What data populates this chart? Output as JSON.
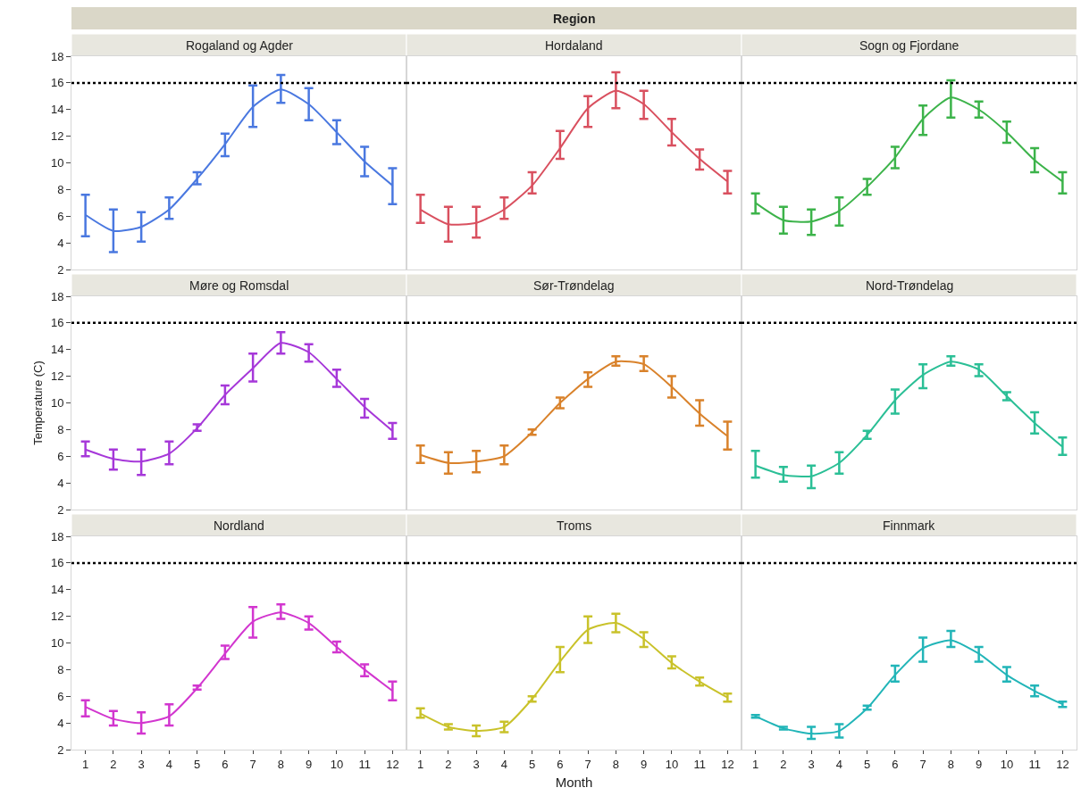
{
  "chart_data": [
    {
      "type": "line",
      "title": "Rogaland og Agder",
      "annotations": [
        "Region"
      ],
      "x": [
        1,
        2,
        3,
        4,
        5,
        6,
        7,
        8,
        9,
        10,
        11,
        12
      ],
      "xlim": [
        0.5,
        12.5
      ],
      "xticks": [
        1,
        2,
        3,
        4,
        5,
        6,
        7,
        8,
        9,
        10,
        11,
        12
      ],
      "ylim": [
        2,
        18
      ],
      "yticks": [
        2,
        4,
        6,
        8,
        10,
        12,
        14,
        16,
        18
      ],
      "grid": false,
      "tick_labels": "y",
      "ref_lines": [
        {
          "axis": "y",
          "value": 16,
          "color": "#000000",
          "line_style": "dotted"
        }
      ],
      "series": [
        {
          "color": "#4a78e0",
          "values": [
            6.1,
            4.9,
            5.2,
            6.5,
            8.8,
            11.4,
            14.2,
            15.5,
            14.4,
            12.3,
            10.1,
            8.3
          ],
          "errors": [
            [
              4.5,
              7.6
            ],
            [
              3.3,
              6.5
            ],
            [
              4.1,
              6.3
            ],
            [
              5.8,
              7.4
            ],
            [
              8.4,
              9.3
            ],
            [
              10.5,
              12.2
            ],
            [
              12.7,
              15.8
            ],
            [
              14.5,
              16.6
            ],
            [
              13.2,
              15.6
            ],
            [
              11.4,
              13.2
            ],
            [
              9.0,
              11.2
            ],
            [
              6.9,
              9.6
            ]
          ]
        }
      ]
    },
    {
      "type": "line",
      "title": "Hordaland",
      "x": [
        1,
        2,
        3,
        4,
        5,
        6,
        7,
        8,
        9,
        10,
        11,
        12
      ],
      "xlim": [
        0.5,
        12.5
      ],
      "xticks": [
        1,
        2,
        3,
        4,
        5,
        6,
        7,
        8,
        9,
        10,
        11,
        12
      ],
      "ylim": [
        2,
        18
      ],
      "yticks": [
        2,
        4,
        6,
        8,
        10,
        12,
        14,
        16,
        18
      ],
      "grid": false,
      "tick_labels": false,
      "ref_lines": [
        {
          "axis": "y",
          "value": 16,
          "color": "#000000",
          "line_style": "dotted"
        }
      ],
      "series": [
        {
          "color": "#d9505f",
          "values": [
            6.5,
            5.4,
            5.5,
            6.5,
            8.3,
            11.1,
            14.1,
            15.4,
            14.4,
            12.3,
            10.3,
            8.6
          ],
          "errors": [
            [
              5.5,
              7.6
            ],
            [
              4.1,
              6.7
            ],
            [
              4.4,
              6.7
            ],
            [
              5.8,
              7.4
            ],
            [
              7.7,
              9.3
            ],
            [
              10.3,
              12.4
            ],
            [
              12.7,
              15.0
            ],
            [
              14.1,
              16.8
            ],
            [
              13.3,
              15.4
            ],
            [
              11.3,
              13.3
            ],
            [
              9.5,
              11.0
            ],
            [
              7.7,
              9.4
            ]
          ]
        }
      ]
    },
    {
      "type": "line",
      "title": "Sogn og Fjordane",
      "x": [
        1,
        2,
        3,
        4,
        5,
        6,
        7,
        8,
        9,
        10,
        11,
        12
      ],
      "xlim": [
        0.5,
        12.5
      ],
      "xticks": [
        1,
        2,
        3,
        4,
        5,
        6,
        7,
        8,
        9,
        10,
        11,
        12
      ],
      "ylim": [
        2,
        18
      ],
      "yticks": [
        2,
        4,
        6,
        8,
        10,
        12,
        14,
        16,
        18
      ],
      "grid": false,
      "tick_labels": false,
      "ref_lines": [
        {
          "axis": "y",
          "value": 16,
          "color": "#000000",
          "line_style": "dotted"
        }
      ],
      "series": [
        {
          "color": "#3cb34a",
          "values": [
            7.0,
            5.7,
            5.6,
            6.4,
            8.2,
            10.4,
            13.3,
            14.9,
            14.0,
            12.3,
            10.2,
            8.6
          ],
          "errors": [
            [
              6.2,
              7.7
            ],
            [
              4.7,
              6.7
            ],
            [
              4.6,
              6.5
            ],
            [
              5.3,
              7.4
            ],
            [
              7.6,
              8.8
            ],
            [
              9.6,
              11.2
            ],
            [
              12.1,
              14.3
            ],
            [
              13.4,
              16.2
            ],
            [
              13.4,
              14.6
            ],
            [
              11.5,
              13.1
            ],
            [
              9.3,
              11.1
            ],
            [
              7.7,
              9.3
            ]
          ]
        }
      ]
    },
    {
      "type": "line",
      "title": "Møre og Romsdal",
      "ylabel": "Temperature (C)",
      "x": [
        1,
        2,
        3,
        4,
        5,
        6,
        7,
        8,
        9,
        10,
        11,
        12
      ],
      "xlim": [
        0.5,
        12.5
      ],
      "xticks": [
        1,
        2,
        3,
        4,
        5,
        6,
        7,
        8,
        9,
        10,
        11,
        12
      ],
      "ylim": [
        2,
        18
      ],
      "yticks": [
        2,
        4,
        6,
        8,
        10,
        12,
        14,
        16,
        18
      ],
      "grid": false,
      "tick_labels": "y",
      "ref_lines": [
        {
          "axis": "y",
          "value": 16,
          "color": "#000000",
          "line_style": "dotted"
        }
      ],
      "series": [
        {
          "color": "#a638d9",
          "values": [
            6.5,
            5.8,
            5.6,
            6.2,
            8.1,
            10.6,
            12.6,
            14.5,
            13.8,
            11.8,
            9.7,
            7.9
          ],
          "errors": [
            [
              6.0,
              7.1
            ],
            [
              5.0,
              6.5
            ],
            [
              4.6,
              6.5
            ],
            [
              5.4,
              7.1
            ],
            [
              7.9,
              8.4
            ],
            [
              9.9,
              11.3
            ],
            [
              11.6,
              13.7
            ],
            [
              13.7,
              15.3
            ],
            [
              13.1,
              14.4
            ],
            [
              11.2,
              12.5
            ],
            [
              8.9,
              10.3
            ],
            [
              7.3,
              8.5
            ]
          ]
        }
      ]
    },
    {
      "type": "line",
      "title": "Sør-Trøndelag",
      "x": [
        1,
        2,
        3,
        4,
        5,
        6,
        7,
        8,
        9,
        10,
        11,
        12
      ],
      "xlim": [
        0.5,
        12.5
      ],
      "xticks": [
        1,
        2,
        3,
        4,
        5,
        6,
        7,
        8,
        9,
        10,
        11,
        12
      ],
      "ylim": [
        2,
        18
      ],
      "yticks": [
        2,
        4,
        6,
        8,
        10,
        12,
        14,
        16,
        18
      ],
      "grid": false,
      "tick_labels": false,
      "ref_lines": [
        {
          "axis": "y",
          "value": 16,
          "color": "#000000",
          "line_style": "dotted"
        }
      ],
      "series": [
        {
          "color": "#d9822b",
          "values": [
            6.1,
            5.5,
            5.6,
            6.0,
            7.8,
            10.0,
            11.8,
            13.1,
            12.9,
            11.2,
            9.2,
            7.5
          ],
          "errors": [
            [
              5.5,
              6.8
            ],
            [
              4.7,
              6.3
            ],
            [
              4.8,
              6.4
            ],
            [
              5.4,
              6.8
            ],
            [
              7.6,
              8.0
            ],
            [
              9.6,
              10.4
            ],
            [
              11.2,
              12.3
            ],
            [
              12.8,
              13.5
            ],
            [
              12.4,
              13.5
            ],
            [
              10.4,
              12.0
            ],
            [
              8.3,
              10.2
            ],
            [
              6.5,
              8.6
            ]
          ]
        }
      ]
    },
    {
      "type": "line",
      "title": "Nord-Trøndelag",
      "x": [
        1,
        2,
        3,
        4,
        5,
        6,
        7,
        8,
        9,
        10,
        11,
        12
      ],
      "xlim": [
        0.5,
        12.5
      ],
      "xticks": [
        1,
        2,
        3,
        4,
        5,
        6,
        7,
        8,
        9,
        10,
        11,
        12
      ],
      "ylim": [
        2,
        18
      ],
      "yticks": [
        2,
        4,
        6,
        8,
        10,
        12,
        14,
        16,
        18
      ],
      "grid": false,
      "tick_labels": false,
      "ref_lines": [
        {
          "axis": "y",
          "value": 16,
          "color": "#000000",
          "line_style": "dotted"
        }
      ],
      "series": [
        {
          "color": "#2bbf96",
          "values": [
            5.3,
            4.6,
            4.5,
            5.5,
            7.6,
            10.2,
            12.1,
            13.1,
            12.5,
            10.5,
            8.5,
            6.7
          ],
          "errors": [
            [
              4.4,
              6.4
            ],
            [
              4.1,
              5.2
            ],
            [
              3.6,
              5.3
            ],
            [
              4.7,
              6.3
            ],
            [
              7.3,
              7.9
            ],
            [
              9.2,
              11.0
            ],
            [
              11.1,
              12.9
            ],
            [
              12.8,
              13.5
            ],
            [
              12.0,
              12.9
            ],
            [
              10.2,
              10.8
            ],
            [
              7.7,
              9.3
            ],
            [
              6.1,
              7.4
            ]
          ]
        }
      ]
    },
    {
      "type": "line",
      "title": "Nordland",
      "x": [
        1,
        2,
        3,
        4,
        5,
        6,
        7,
        8,
        9,
        10,
        11,
        12
      ],
      "xlim": [
        0.5,
        12.5
      ],
      "xticks": [
        1,
        2,
        3,
        4,
        5,
        6,
        7,
        8,
        9,
        10,
        11,
        12
      ],
      "ylim": [
        2,
        18
      ],
      "yticks": [
        2,
        4,
        6,
        8,
        10,
        12,
        14,
        16,
        18
      ],
      "grid": false,
      "ref_lines": [
        {
          "axis": "y",
          "value": 16,
          "color": "#000000",
          "line_style": "dotted"
        }
      ],
      "series": [
        {
          "color": "#d236cf",
          "values": [
            5.2,
            4.3,
            4.0,
            4.5,
            6.6,
            9.2,
            11.6,
            12.3,
            11.5,
            9.7,
            8.0,
            6.4
          ],
          "errors": [
            [
              4.5,
              5.7
            ],
            [
              3.8,
              4.9
            ],
            [
              3.2,
              4.8
            ],
            [
              3.8,
              5.4
            ],
            [
              6.5,
              6.8
            ],
            [
              8.8,
              9.8
            ],
            [
              10.4,
              12.7
            ],
            [
              11.8,
              12.9
            ],
            [
              11.0,
              12.0
            ],
            [
              9.3,
              10.1
            ],
            [
              7.5,
              8.4
            ],
            [
              5.7,
              7.1
            ]
          ]
        }
      ]
    },
    {
      "type": "line",
      "title": "Troms",
      "xlabel": "Month",
      "x": [
        1,
        2,
        3,
        4,
        5,
        6,
        7,
        8,
        9,
        10,
        11,
        12
      ],
      "xlim": [
        0.5,
        12.5
      ],
      "xticks": [
        1,
        2,
        3,
        4,
        5,
        6,
        7,
        8,
        9,
        10,
        11,
        12
      ],
      "ylim": [
        2,
        18
      ],
      "yticks": [
        2,
        4,
        6,
        8,
        10,
        12,
        14,
        16,
        18
      ],
      "grid": false,
      "tick_labels": "x",
      "ref_lines": [
        {
          "axis": "y",
          "value": 16,
          "color": "#000000",
          "line_style": "dotted"
        }
      ],
      "series": [
        {
          "color": "#c9c22a",
          "values": [
            4.7,
            3.7,
            3.4,
            3.7,
            5.8,
            8.6,
            11.0,
            11.5,
            10.3,
            8.5,
            7.1,
            5.9
          ],
          "errors": [
            [
              4.4,
              5.1
            ],
            [
              3.5,
              3.9
            ],
            [
              3.0,
              3.8
            ],
            [
              3.3,
              4.1
            ],
            [
              5.6,
              6.0
            ],
            [
              7.8,
              9.7
            ],
            [
              10.0,
              12.0
            ],
            [
              10.8,
              12.2
            ],
            [
              9.7,
              10.8
            ],
            [
              8.1,
              9.0
            ],
            [
              6.8,
              7.4
            ],
            [
              5.6,
              6.2
            ]
          ]
        }
      ]
    },
    {
      "type": "line",
      "title": "Finnmark",
      "x": [
        1,
        2,
        3,
        4,
        5,
        6,
        7,
        8,
        9,
        10,
        11,
        12
      ],
      "xlim": [
        0.5,
        12.5
      ],
      "xticks": [
        1,
        2,
        3,
        4,
        5,
        6,
        7,
        8,
        9,
        10,
        11,
        12
      ],
      "ylim": [
        2,
        18
      ],
      "yticks": [
        2,
        4,
        6,
        8,
        10,
        12,
        14,
        16,
        18
      ],
      "grid": false,
      "tick_labels": "x",
      "ref_lines": [
        {
          "axis": "y",
          "value": 16,
          "color": "#000000",
          "line_style": "dotted"
        }
      ],
      "series": [
        {
          "color": "#22b5b8",
          "values": [
            4.5,
            3.6,
            3.2,
            3.4,
            5.1,
            7.6,
            9.6,
            10.2,
            9.2,
            7.6,
            6.4,
            5.4
          ],
          "errors": [
            [
              4.4,
              4.6
            ],
            [
              3.5,
              3.7
            ],
            [
              2.8,
              3.7
            ],
            [
              2.9,
              3.9
            ],
            [
              5.0,
              5.3
            ],
            [
              7.1,
              8.3
            ],
            [
              8.6,
              10.4
            ],
            [
              9.7,
              10.9
            ],
            [
              8.6,
              9.7
            ],
            [
              7.1,
              8.2
            ],
            [
              6.0,
              6.8
            ],
            [
              5.2,
              5.6
            ]
          ]
        }
      ]
    }
  ]
}
